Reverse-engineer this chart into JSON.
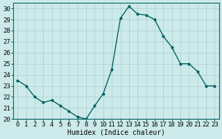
{
  "x": [
    0,
    1,
    2,
    3,
    4,
    5,
    6,
    7,
    8,
    9,
    10,
    11,
    12,
    13,
    14,
    15,
    16,
    17,
    18,
    19,
    20,
    21,
    22,
    23
  ],
  "y": [
    23.5,
    23.0,
    22.0,
    21.5,
    21.7,
    21.2,
    20.7,
    20.2,
    20.0,
    21.2,
    22.3,
    24.5,
    29.1,
    30.2,
    29.5,
    29.4,
    29.0,
    27.5,
    26.5,
    25.0,
    25.0,
    24.3,
    23.0,
    23.0
  ],
  "line_color": "#006060",
  "marker": "o",
  "marker_size": 2.0,
  "linewidth": 1.0,
  "bg_color": "#cceaea",
  "grid_color": "#aacccc",
  "xlabel": "Humidex (Indice chaleur)",
  "xlabel_fontsize": 7,
  "ylim": [
    20,
    30.5
  ],
  "xlim": [
    -0.5,
    23.5
  ],
  "yticks": [
    20,
    21,
    22,
    23,
    24,
    25,
    26,
    27,
    28,
    29,
    30
  ],
  "xticks": [
    0,
    1,
    2,
    3,
    4,
    5,
    6,
    7,
    8,
    9,
    10,
    11,
    12,
    13,
    14,
    15,
    16,
    17,
    18,
    19,
    20,
    21,
    22,
    23
  ],
  "tick_fontsize": 6.5
}
